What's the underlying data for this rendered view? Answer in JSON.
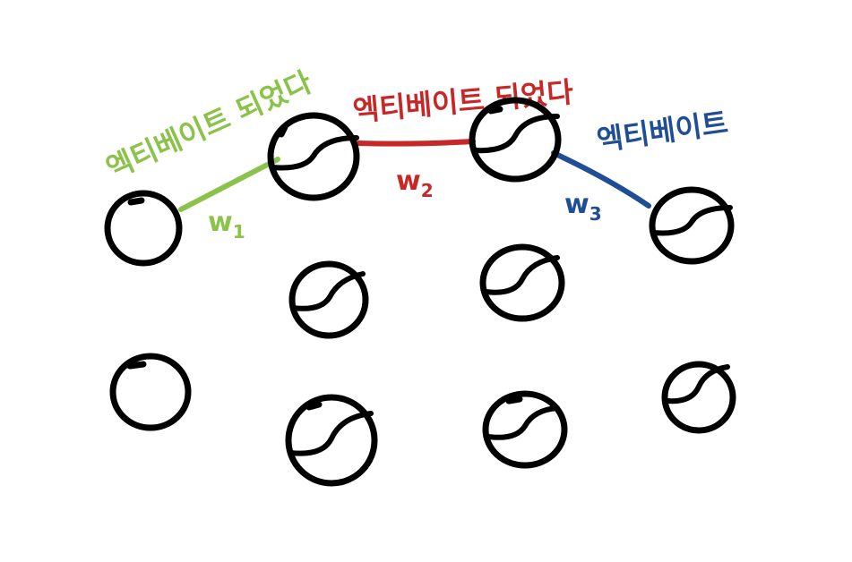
{
  "colors": {
    "background": "#ffffff",
    "node": "#000000",
    "edge_1": "#8bc34a",
    "edge_2": "#c62828",
    "edge_3": "#1f4e96"
  },
  "nodes": [
    {
      "id": "n1",
      "activated": false
    },
    {
      "id": "n2",
      "activated": true
    },
    {
      "id": "n3",
      "activated": true
    },
    {
      "id": "n4",
      "activated": true
    },
    {
      "id": "n5",
      "activated": true
    },
    {
      "id": "n6",
      "activated": true
    },
    {
      "id": "n7",
      "activated": false
    },
    {
      "id": "n8",
      "activated": true
    },
    {
      "id": "n9",
      "activated": true
    },
    {
      "id": "n10",
      "activated": true
    }
  ],
  "edges": [
    {
      "from": "n1",
      "to": "n2",
      "color": "#8bc34a",
      "label": "엑티베이트 되었다",
      "weight": "w1"
    },
    {
      "from": "n2",
      "to": "n3",
      "color": "#c62828",
      "label": "엑티베이트 되었다",
      "weight": "w2"
    },
    {
      "from": "n3",
      "to": "n4",
      "color": "#1f4e96",
      "label": "엑티베이트",
      "weight": "w3"
    }
  ]
}
